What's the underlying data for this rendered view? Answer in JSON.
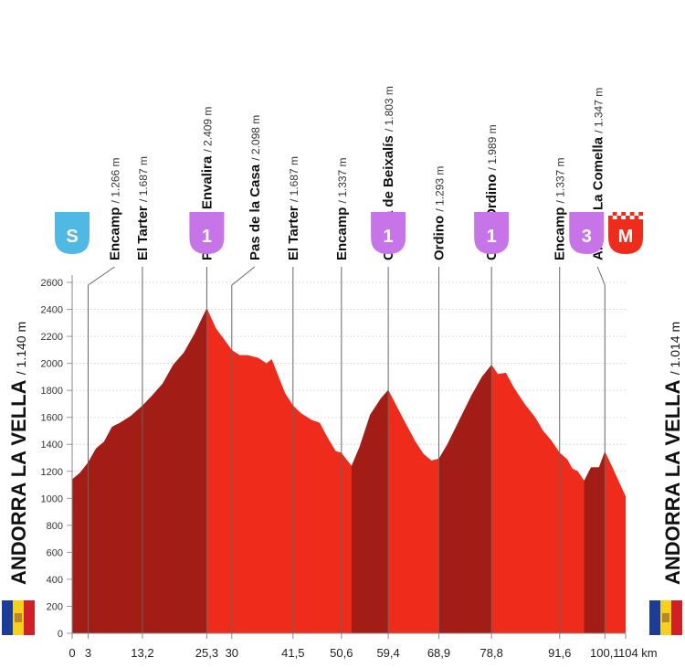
{
  "chart_data": {
    "type": "elevation-profile",
    "x": [
      0,
      1.5,
      3,
      4.5,
      6,
      7.5,
      9,
      11,
      13.2,
      15,
      17,
      19,
      21,
      23,
      25.3,
      27,
      28.5,
      30,
      31.5,
      33,
      35,
      36.5,
      37.5,
      38.5,
      40,
      41.5,
      43,
      45,
      46.5,
      48,
      49.5,
      50.6,
      51.5,
      52.5,
      54,
      56,
      58,
      59.4,
      61,
      63,
      64.5,
      66,
      67.5,
      68.9,
      70.5,
      72.5,
      75,
      77,
      78.8,
      80,
      81.5,
      83,
      85,
      87,
      88.5,
      90,
      91.6,
      93,
      94,
      95,
      96.2,
      97.5,
      99,
      100.1,
      101.5,
      103,
      104
    ],
    "values": [
      1140,
      1190,
      1266,
      1370,
      1420,
      1530,
      1560,
      1610,
      1687,
      1760,
      1850,
      1990,
      2080,
      2220,
      2409,
      2260,
      2180,
      2098,
      2060,
      2060,
      2040,
      2000,
      2030,
      1930,
      1780,
      1687,
      1630,
      1580,
      1560,
      1450,
      1350,
      1337,
      1290,
      1240,
      1380,
      1620,
      1740,
      1803,
      1680,
      1530,
      1420,
      1330,
      1280,
      1293,
      1400,
      1560,
      1760,
      1900,
      1989,
      1920,
      1930,
      1820,
      1700,
      1600,
      1500,
      1430,
      1337,
      1290,
      1220,
      1200,
      1130,
      1230,
      1230,
      1347,
      1230,
      1100,
      1014
    ],
    "xlim": [
      0,
      104
    ],
    "ylim": [
      0,
      2600
    ],
    "xticks": [
      0,
      3,
      {
        "value": 13.2,
        "label": "13,2"
      },
      {
        "value": 25.3,
        "label": "25,3"
      },
      30,
      {
        "value": 41.5,
        "label": "41,5"
      },
      {
        "value": 50.6,
        "label": "50,6"
      },
      {
        "value": 59.4,
        "label": "59,4"
      },
      {
        "value": 68.9,
        "label": "68,9"
      },
      {
        "value": 78.8,
        "label": "78,8"
      },
      {
        "value": 91.6,
        "label": "91,6"
      },
      {
        "value": 100.1,
        "label": "100,1"
      },
      {
        "value": 104,
        "label": "104 km"
      }
    ],
    "yticks": [
      0,
      200,
      400,
      600,
      800,
      1000,
      1200,
      1400,
      1600,
      1800,
      2000,
      2200,
      2400,
      2600
    ],
    "grid": true,
    "segments": [
      {
        "from": 0,
        "to": 25.3,
        "color": "#a11d15"
      },
      {
        "from": 25.3,
        "to": 52.5,
        "color": "#ef2b1b"
      },
      {
        "from": 52.5,
        "to": 59.4,
        "color": "#a11d15"
      },
      {
        "from": 59.4,
        "to": 68.9,
        "color": "#ef2b1b"
      },
      {
        "from": 68.9,
        "to": 78.8,
        "color": "#a11d15"
      },
      {
        "from": 78.8,
        "to": 96.2,
        "color": "#ef2b1b"
      },
      {
        "from": 96.2,
        "to": 100.1,
        "color": "#a11d15"
      },
      {
        "from": 100.1,
        "to": 104,
        "color": "#ef2b1b"
      }
    ],
    "waypoints": [
      {
        "name": "Encamp",
        "altitude": "/ 1.266 m",
        "km": 3
      },
      {
        "name": "El Tarter",
        "altitude": "/ 1.687 m",
        "km": 13.2
      },
      {
        "name": "Port de Envalira",
        "altitude": "/ 2.409 m",
        "km": 25.3
      },
      {
        "name": "Pas de la Casa",
        "altitude": "/ 2.098 m",
        "km": 30
      },
      {
        "name": "El Tarter",
        "altitude": "/ 1.687 m",
        "km": 41.5
      },
      {
        "name": "Encamp",
        "altitude": "/ 1.337 m",
        "km": 50.6
      },
      {
        "name": "Collada de Beixalís",
        "altitude": "/ 1.803 m",
        "km": 59.4
      },
      {
        "name": "Ordino",
        "altitude": "/ 1.293 m",
        "km": 68.9
      },
      {
        "name": "Coll d'Ordino",
        "altitude": "/ 1.989 m",
        "km": 78.8
      },
      {
        "name": "Encamp",
        "altitude": "/ 1.337 m",
        "km": 91.6
      },
      {
        "name": "Alto de La Comella",
        "altitude": "/ 1.347 m",
        "km": 100.1
      }
    ],
    "badges": [
      {
        "label": "S",
        "km": 0,
        "color": "#4fb8e3"
      },
      {
        "label": "1",
        "km": 25.3,
        "color": "#c774e8"
      },
      {
        "label": "1",
        "km": 59.4,
        "color": "#c774e8"
      },
      {
        "label": "1",
        "km": 78.8,
        "color": "#c774e8"
      },
      {
        "label": "3",
        "km": 100.1,
        "color": "#c774e8"
      },
      {
        "label": "M",
        "km": 104,
        "color": "#ef2b1b"
      }
    ],
    "start": {
      "name": "ANDORRA LA VELLA",
      "altitude": "/ 1.140 m"
    },
    "finish": {
      "name": "ANDORRA LA VELLA",
      "altitude": "/ 1.014 m"
    }
  }
}
